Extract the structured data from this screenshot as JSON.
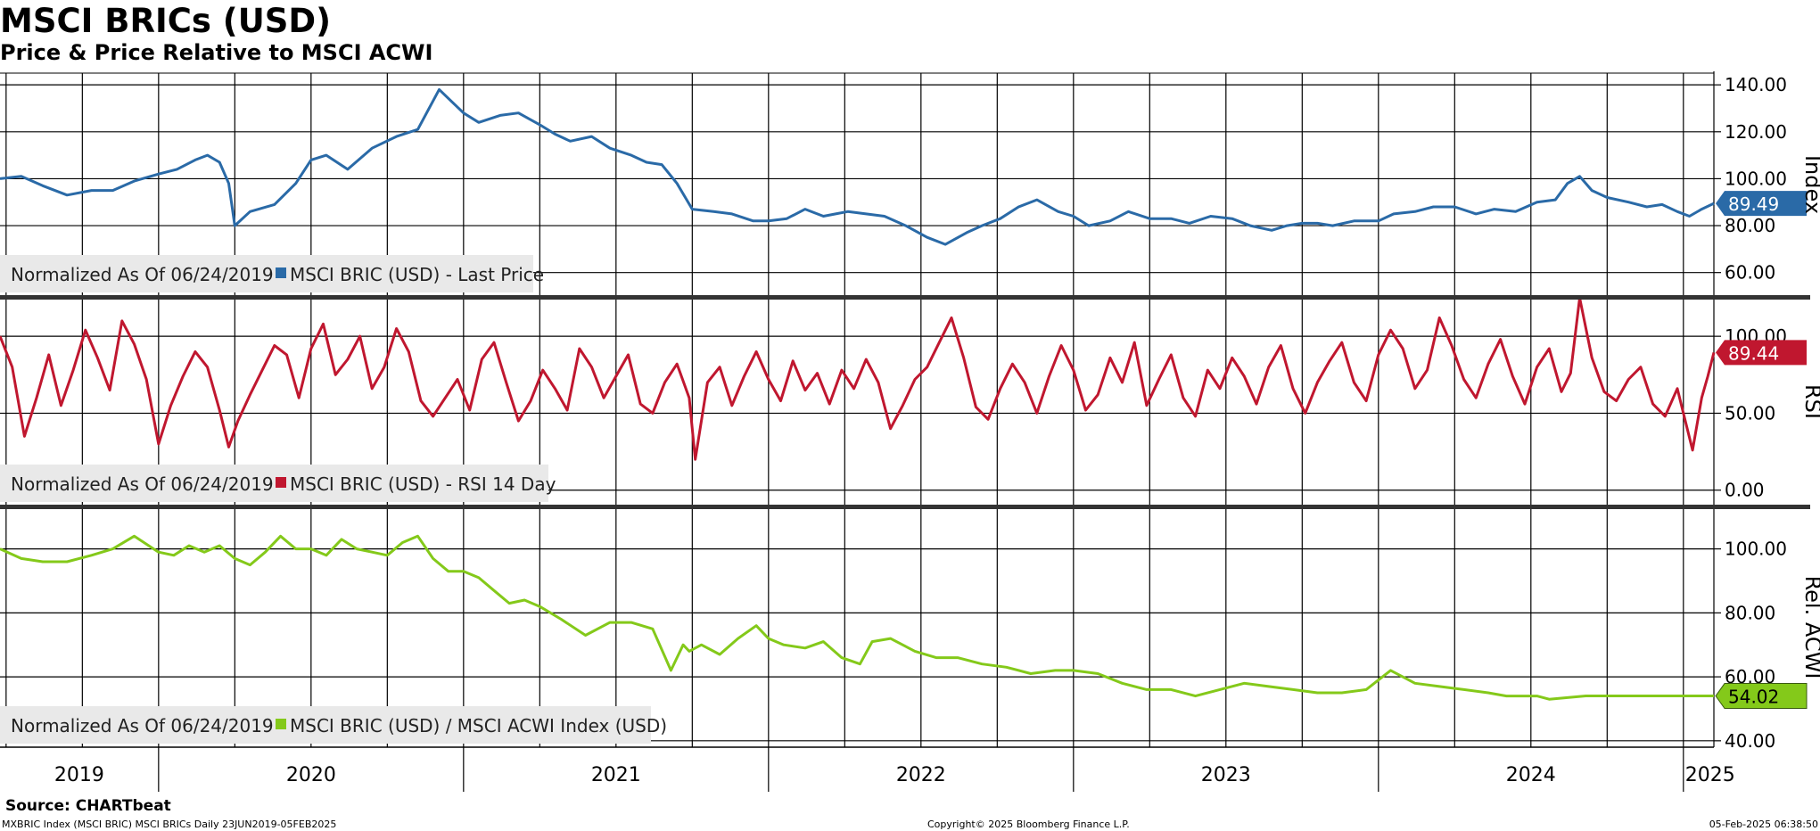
{
  "header": {
    "title": "MSCI BRICs (USD)",
    "subtitle": "Price & Price Relative to MSCI ACWI"
  },
  "footer": {
    "source": "Source: CHARTbeat",
    "ticker_info": "MXBRIC Index (MSCI BRIC) MSCI BRICs  Daily 23JUN2019-05FEB2025",
    "copyright": "Copyright© 2025 Bloomberg Finance L.P.",
    "timestamp": "05-Feb-2025 06:38:50"
  },
  "x_axis": {
    "year_labels": [
      "2019",
      "2020",
      "2021",
      "2022",
      "2023",
      "2024",
      "2025"
    ],
    "range": [
      "2019-06-24",
      "2025-02-05"
    ]
  },
  "colors": {
    "price": "#2a6aa7",
    "rsi": "#c0172f",
    "rel": "#84c91a",
    "grid": "#000000",
    "separator": "#333333",
    "legend_bg": "#e9e9e9"
  },
  "chart_data": [
    {
      "type": "line",
      "panel": "price",
      "ylabel": "Index",
      "ylim": [
        50,
        145
      ],
      "yticks": [
        60,
        80,
        100,
        120,
        140
      ],
      "ytick_labels": [
        "60.00",
        "80.00",
        "100.00",
        "120.00",
        "140.00"
      ],
      "last_value": 89.49,
      "last_label": "89.49",
      "legend_prefix": "Normalized As Of 06/24/2019",
      "legend_series": "MSCI BRIC (USD) - Last Price",
      "series": [
        {
          "name": "MSCI BRIC (USD) - Last Price",
          "x": [
            2019.48,
            2019.55,
            2019.62,
            2019.7,
            2019.78,
            2019.85,
            2019.92,
            2020.0,
            2020.06,
            2020.12,
            2020.16,
            2020.2,
            2020.23,
            2020.25,
            2020.3,
            2020.38,
            2020.45,
            2020.5,
            2020.55,
            2020.62,
            2020.7,
            2020.78,
            2020.85,
            2020.92,
            2021.0,
            2021.05,
            2021.12,
            2021.18,
            2021.25,
            2021.3,
            2021.35,
            2021.42,
            2021.48,
            2021.55,
            2021.6,
            2021.65,
            2021.7,
            2021.75,
            2021.82,
            2021.88,
            2021.95,
            2022.0,
            2022.06,
            2022.12,
            2022.18,
            2022.22,
            2022.26,
            2022.32,
            2022.38,
            2022.45,
            2022.52,
            2022.58,
            2022.65,
            2022.7,
            2022.76,
            2022.82,
            2022.88,
            2022.95,
            2023.0,
            2023.05,
            2023.12,
            2023.18,
            2023.25,
            2023.32,
            2023.38,
            2023.45,
            2023.52,
            2023.58,
            2023.65,
            2023.7,
            2023.75,
            2023.8,
            2023.85,
            2023.92,
            2024.0,
            2024.05,
            2024.12,
            2024.18,
            2024.25,
            2024.32,
            2024.38,
            2024.45,
            2024.52,
            2024.58,
            2024.62,
            2024.66,
            2024.7,
            2024.75,
            2024.82,
            2024.88,
            2024.93,
            2024.98,
            2025.02,
            2025.06,
            2025.1
          ],
          "values": [
            100,
            101,
            97,
            93,
            95,
            95,
            99,
            102,
            104,
            108,
            110,
            107,
            98,
            80,
            86,
            89,
            98,
            108,
            110,
            104,
            113,
            118,
            121,
            138,
            128,
            124,
            127,
            128,
            123,
            119,
            116,
            118,
            113,
            110,
            107,
            106,
            98,
            87,
            86,
            85,
            82,
            82,
            83,
            87,
            84,
            85,
            86,
            85,
            84,
            80,
            75,
            72,
            77,
            80,
            83,
            88,
            91,
            86,
            84,
            80,
            82,
            86,
            83,
            83,
            81,
            84,
            83,
            80,
            78,
            80,
            81,
            81,
            80,
            82,
            82,
            85,
            86,
            88,
            88,
            85,
            87,
            86,
            90,
            91,
            98,
            101,
            95,
            92,
            90,
            88,
            89,
            86,
            84,
            87,
            89.49
          ]
        }
      ]
    },
    {
      "type": "line",
      "panel": "rsi",
      "ylabel": "RSI",
      "ylim": [
        -10,
        125
      ],
      "yticks": [
        0,
        50,
        100
      ],
      "ytick_labels": [
        "0.00",
        "50.00",
        "100.00"
      ],
      "last_value": 89.44,
      "last_label": "89.44",
      "legend_prefix": "Normalized As Of 06/24/2019",
      "legend_series": "MSCI BRIC (USD) - RSI 14 Day",
      "series": [
        {
          "name": "MSCI BRIC (USD) - RSI 14 Day",
          "x": [
            2019.48,
            2019.52,
            2019.56,
            2019.6,
            2019.64,
            2019.68,
            2019.72,
            2019.76,
            2019.8,
            2019.84,
            2019.88,
            2019.92,
            2019.96,
            2020.0,
            2020.04,
            2020.08,
            2020.12,
            2020.16,
            2020.2,
            2020.23,
            2020.26,
            2020.3,
            2020.34,
            2020.38,
            2020.42,
            2020.46,
            2020.5,
            2020.54,
            2020.58,
            2020.62,
            2020.66,
            2020.7,
            2020.74,
            2020.78,
            2020.82,
            2020.86,
            2020.9,
            2020.94,
            2020.98,
            2021.02,
            2021.06,
            2021.1,
            2021.14,
            2021.18,
            2021.22,
            2021.26,
            2021.3,
            2021.34,
            2021.38,
            2021.42,
            2021.46,
            2021.5,
            2021.54,
            2021.58,
            2021.62,
            2021.66,
            2021.7,
            2021.74,
            2021.76,
            2021.8,
            2021.84,
            2021.88,
            2021.92,
            2021.96,
            2022.0,
            2022.04,
            2022.08,
            2022.12,
            2022.16,
            2022.2,
            2022.24,
            2022.28,
            2022.32,
            2022.36,
            2022.4,
            2022.44,
            2022.48,
            2022.52,
            2022.56,
            2022.6,
            2022.64,
            2022.68,
            2022.72,
            2022.76,
            2022.8,
            2022.84,
            2022.88,
            2022.92,
            2022.96,
            2023.0,
            2023.04,
            2023.08,
            2023.12,
            2023.16,
            2023.2,
            2023.24,
            2023.28,
            2023.32,
            2023.36,
            2023.4,
            2023.44,
            2023.48,
            2023.52,
            2023.56,
            2023.6,
            2023.64,
            2023.68,
            2023.72,
            2023.76,
            2023.8,
            2023.84,
            2023.88,
            2023.92,
            2023.96,
            2024.0,
            2024.04,
            2024.08,
            2024.12,
            2024.16,
            2024.2,
            2024.24,
            2024.28,
            2024.32,
            2024.36,
            2024.4,
            2024.44,
            2024.48,
            2024.52,
            2024.56,
            2024.6,
            2024.63,
            2024.66,
            2024.7,
            2024.74,
            2024.78,
            2024.82,
            2024.86,
            2024.9,
            2024.94,
            2024.98,
            2025.0,
            2025.03,
            2025.06,
            2025.08,
            2025.1
          ],
          "values": [
            100,
            80,
            35,
            60,
            88,
            55,
            78,
            104,
            86,
            65,
            110,
            95,
            72,
            30,
            55,
            74,
            90,
            80,
            52,
            28,
            45,
            62,
            78,
            94,
            88,
            60,
            92,
            108,
            75,
            85,
            100,
            66,
            80,
            105,
            90,
            58,
            48,
            60,
            72,
            52,
            85,
            96,
            70,
            45,
            58,
            78,
            66,
            52,
            92,
            80,
            60,
            74,
            88,
            56,
            50,
            70,
            82,
            60,
            20,
            70,
            80,
            55,
            74,
            90,
            72,
            58,
            84,
            65,
            76,
            56,
            78,
            66,
            85,
            70,
            40,
            55,
            72,
            80,
            96,
            112,
            86,
            54,
            46,
            66,
            82,
            70,
            50,
            74,
            94,
            78,
            52,
            62,
            86,
            70,
            96,
            55,
            72,
            88,
            60,
            48,
            78,
            66,
            86,
            74,
            56,
            80,
            94,
            66,
            50,
            70,
            84,
            96,
            70,
            58,
            88,
            104,
            92,
            66,
            78,
            112,
            94,
            72,
            60,
            82,
            98,
            74,
            56,
            80,
            92,
            64,
            76,
            125,
            86,
            64,
            58,
            72,
            80,
            56,
            48,
            66,
            50,
            26,
            60,
            74,
            89.44
          ]
        }
      ]
    },
    {
      "type": "line",
      "panel": "rel",
      "ylabel": "Rel. ACWI",
      "ylim": [
        38,
        113
      ],
      "yticks": [
        40,
        60,
        80,
        100
      ],
      "ytick_labels": [
        "40.00",
        "60.00",
        "80.00",
        "100.00"
      ],
      "last_value": 54.02,
      "last_label": "54.02",
      "legend_prefix": "Normalized As Of 06/24/2019",
      "legend_series": "MSCI BRIC (USD) / MSCI ACWI Index (USD)",
      "series": [
        {
          "name": "MSCI BRIC (USD) / MSCI ACWI Index (USD)",
          "x": [
            2019.48,
            2019.55,
            2019.62,
            2019.7,
            2019.78,
            2019.85,
            2019.92,
            2020.0,
            2020.05,
            2020.1,
            2020.15,
            2020.2,
            2020.25,
            2020.3,
            2020.35,
            2020.4,
            2020.45,
            2020.5,
            2020.55,
            2020.6,
            2020.65,
            2020.7,
            2020.75,
            2020.8,
            2020.85,
            2020.9,
            2020.95,
            2021.0,
            2021.05,
            2021.1,
            2021.15,
            2021.2,
            2021.25,
            2021.32,
            2021.4,
            2021.48,
            2021.55,
            2021.62,
            2021.68,
            2021.72,
            2021.74,
            2021.78,
            2021.84,
            2021.9,
            2021.96,
            2022.0,
            2022.05,
            2022.12,
            2022.18,
            2022.24,
            2022.3,
            2022.34,
            2022.4,
            2022.48,
            2022.55,
            2022.62,
            2022.7,
            2022.78,
            2022.86,
            2022.94,
            2023.0,
            2023.08,
            2023.16,
            2023.24,
            2023.32,
            2023.4,
            2023.48,
            2023.56,
            2023.64,
            2023.72,
            2023.8,
            2023.88,
            2023.96,
            2024.04,
            2024.12,
            2024.2,
            2024.28,
            2024.36,
            2024.42,
            2024.48,
            2024.52,
            2024.56,
            2024.62,
            2024.68,
            2024.74,
            2024.8,
            2024.86,
            2024.92,
            2024.98,
            2025.02,
            2025.06,
            2025.1
          ],
          "values": [
            100,
            97,
            96,
            96,
            98,
            100,
            104,
            99,
            98,
            101,
            99,
            101,
            97,
            95,
            99,
            104,
            100,
            100,
            98,
            103,
            100,
            99,
            98,
            102,
            104,
            97,
            93,
            93,
            91,
            87,
            83,
            84,
            82,
            78,
            73,
            77,
            77,
            75,
            62,
            70,
            68,
            70,
            67,
            72,
            76,
            72,
            70,
            69,
            71,
            66,
            64,
            71,
            72,
            68,
            66,
            66,
            64,
            63,
            61,
            62,
            62,
            61,
            58,
            56,
            56,
            54,
            56,
            58,
            57,
            56,
            55,
            55,
            56,
            62,
            58,
            57,
            56,
            55,
            54,
            54,
            54,
            53,
            53.5,
            54.02,
            54.02,
            54.02,
            54.02,
            54.02,
            54.02,
            54.02,
            54.02,
            54.02
          ]
        }
      ]
    }
  ]
}
